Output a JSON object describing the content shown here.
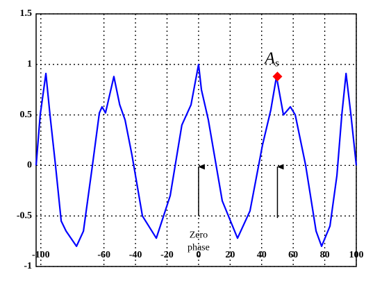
{
  "chart_data": {
    "type": "line",
    "x": [
      -103,
      -100.4,
      -96.8,
      -94.2,
      -90.7,
      -87.1,
      -84,
      -77.4,
      -73,
      -67.3,
      -62.9,
      -61.2,
      -59,
      -53.7,
      -50,
      -46.6,
      -42.2,
      -35.6,
      -26.8,
      -18,
      -10.6,
      -4.8,
      0,
      1.8,
      6.2,
      15,
      24.7,
      32.6,
      40.5,
      45.8,
      49.4,
      53.8,
      58.2,
      61.3,
      67.9,
      74.5,
      78,
      83.3,
      87.7,
      90.8,
      93.5,
      96.6,
      100
    ],
    "series": [
      {
        "color": "#0000ff",
        "values": [
          0,
          0.5,
          0.91,
          0.5,
          0,
          -0.55,
          -0.65,
          -0.8,
          -0.65,
          0,
          0.52,
          0.58,
          0.52,
          0.88,
          0.6,
          0.45,
          0.1,
          -0.5,
          -0.72,
          -0.3,
          0.4,
          0.6,
          1.0,
          0.75,
          0.45,
          -0.35,
          -0.72,
          -0.45,
          0.2,
          0.55,
          0.88,
          0.5,
          0.58,
          0.5,
          0,
          -0.65,
          -0.8,
          -0.6,
          -0.1,
          0.5,
          0.91,
          0.5,
          0
        ]
      }
    ],
    "marker": {
      "x": 50,
      "y": 0.88,
      "color": "#ff0000"
    },
    "annotations": [
      {
        "text": "A",
        "subscript": "s",
        "x": 50,
        "y": 1.05
      },
      {
        "lines": [
          "Zero",
          "phase"
        ],
        "x": 0,
        "y": -0.65
      }
    ],
    "arrows": [
      {
        "x": 0,
        "from": -0.5,
        "to": 0
      },
      {
        "x": 50,
        "from": -0.52,
        "to": 0
      }
    ],
    "xlim": [
      -103,
      100
    ],
    "ylim": [
      -1,
      1.5
    ],
    "xticks": [
      -100,
      -60,
      -40,
      -20,
      0,
      20,
      40,
      60,
      80,
      100
    ],
    "yticks": [
      -1,
      -0.5,
      0,
      0.5,
      1,
      1.5
    ],
    "grid": true
  }
}
